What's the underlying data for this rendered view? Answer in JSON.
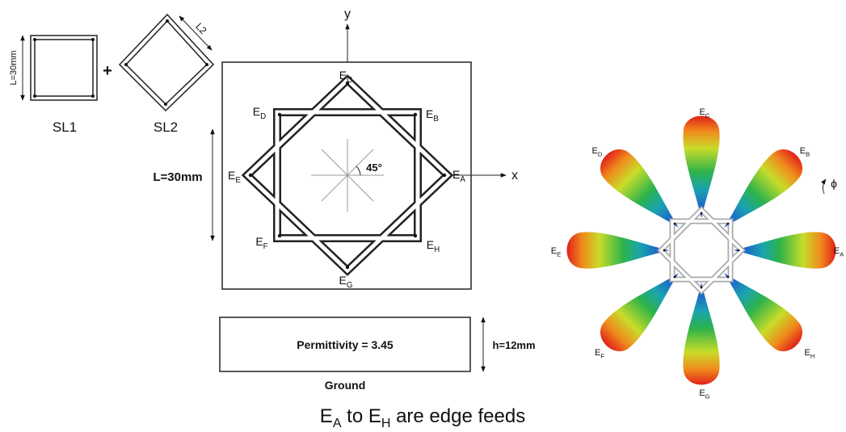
{
  "sl1": {
    "label": "SL1",
    "side": "L=30mm"
  },
  "plus": "+",
  "sl2": {
    "label": "SL2",
    "side": "L2"
  },
  "axes": {
    "y": "y",
    "x": "x"
  },
  "angle": "45°",
  "dimensions": {
    "length": "L=30mm",
    "height": "h=12mm"
  },
  "substrate": {
    "permittivity": "Permittivity = 3.45",
    "ground": "Ground"
  },
  "feeds": [
    {
      "base": "E",
      "sub": "A"
    },
    {
      "base": "E",
      "sub": "B"
    },
    {
      "base": "E",
      "sub": "C"
    },
    {
      "base": "E",
      "sub": "D"
    },
    {
      "base": "E",
      "sub": "E"
    },
    {
      "base": "E",
      "sub": "F"
    },
    {
      "base": "E",
      "sub": "G"
    },
    {
      "base": "E",
      "sub": "H"
    }
  ],
  "phi": "ϕ",
  "caption": [
    {
      "text": "E"
    },
    {
      "text": "A",
      "sub": true
    },
    {
      "text": " to E"
    },
    {
      "text": "H",
      "sub": true
    },
    {
      "text": " are edge feeds"
    }
  ]
}
